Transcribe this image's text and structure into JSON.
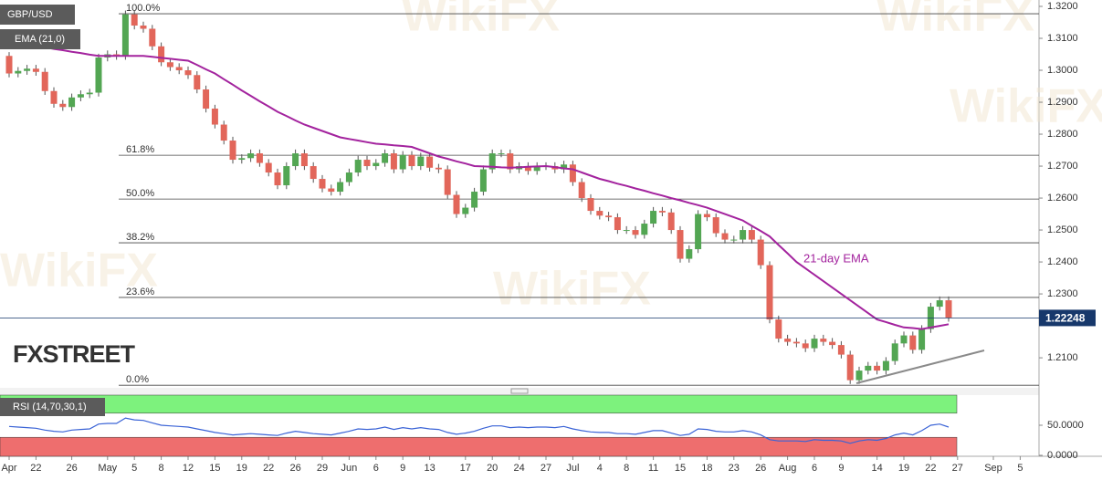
{
  "chart_data": [
    {
      "type": "candlestick",
      "title": "GBP/USD",
      "categories": [
        "Apr",
        null,
        null,
        "22",
        null,
        null,
        null,
        "26",
        null,
        null,
        null,
        "May",
        null,
        null,
        "5",
        null,
        null,
        "8",
        null,
        null,
        "12",
        null,
        null,
        "15",
        null,
        null,
        "19",
        null,
        null,
        "22",
        null,
        null,
        "26",
        null,
        null,
        "29",
        null,
        null,
        "Jun",
        null,
        null,
        "6",
        null,
        null,
        "9",
        null,
        null,
        "13",
        null,
        null,
        null,
        "17",
        null,
        null,
        "20",
        null,
        null,
        "24",
        null,
        null,
        "27",
        null,
        null,
        "Jul",
        null,
        null,
        "4",
        null,
        null,
        "8",
        null,
        null,
        "11",
        null,
        null,
        "15",
        null,
        null,
        "18",
        null,
        null,
        "23",
        null,
        null,
        "26",
        null,
        null,
        "Aug",
        null,
        null,
        "6",
        null,
        null,
        "9",
        null,
        null,
        null,
        "14",
        null,
        null,
        "19",
        null,
        null,
        "22",
        null,
        null,
        "27",
        null,
        null,
        null,
        "Sep",
        null,
        null,
        "5"
      ],
      "open": [
        1.3045,
        1.299,
        1.2998,
        1.3005,
        1.2995,
        1.2935,
        1.2895,
        1.2885,
        1.2915,
        1.2925,
        1.293,
        1.304,
        1.305,
        1.3045,
        1.3175,
        1.314,
        1.313,
        1.3075,
        1.3025,
        1.301,
        1.3,
        1.2985,
        1.294,
        1.288,
        1.283,
        1.278,
        1.272,
        1.2725,
        1.274,
        1.271,
        1.268,
        1.264,
        1.27,
        1.274,
        1.27,
        1.266,
        1.263,
        1.262,
        1.265,
        1.268,
        1.272,
        1.27,
        1.271,
        1.274,
        1.269,
        1.2735,
        1.27,
        1.273,
        1.2695,
        1.269,
        1.261,
        1.255,
        1.257,
        1.262,
        1.269,
        1.274,
        1.274,
        1.269,
        1.27,
        1.2685,
        1.27,
        1.27,
        1.269,
        1.2705,
        1.265,
        1.26,
        1.256,
        1.2545,
        1.254,
        1.25,
        1.25,
        1.2485,
        1.252,
        1.256,
        1.2555,
        1.25,
        1.241,
        1.244,
        1.255,
        1.254,
        1.249,
        1.247,
        1.247,
        1.25,
        1.247,
        1.239,
        1.222,
        1.216,
        1.215,
        1.2145,
        1.213,
        1.216,
        1.215,
        1.214,
        1.211,
        1.203,
        1.206,
        1.2075,
        1.206,
        1.209,
        1.2145,
        1.217,
        1.2125,
        1.219,
        1.226,
        1.228,
        null,
        null,
        null,
        null,
        null,
        null,
        null,
        null
      ],
      "high": [
        1.3057,
        1.301,
        1.3017,
        1.3017,
        1.3007,
        1.2947,
        1.2907,
        1.2927,
        1.2937,
        1.2942,
        1.3052,
        1.3062,
        1.3062,
        1.3187,
        1.3187,
        1.3152,
        1.3142,
        1.3087,
        1.3037,
        1.3022,
        1.3012,
        1.2997,
        1.2952,
        1.2892,
        1.2842,
        1.2792,
        1.2737,
        1.2752,
        1.2752,
        1.2722,
        1.2692,
        1.2712,
        1.2752,
        1.2752,
        1.2712,
        1.2672,
        1.2642,
        1.2662,
        1.2692,
        1.2732,
        1.2732,
        1.2722,
        1.2752,
        1.2752,
        1.2747,
        1.2747,
        1.2742,
        1.2742,
        1.2707,
        1.2702,
        1.2622,
        1.2582,
        1.2632,
        1.2702,
        1.2752,
        1.2752,
        1.2752,
        1.2712,
        1.2712,
        1.2712,
        1.2712,
        1.2712,
        1.2717,
        1.2717,
        1.2662,
        1.2612,
        1.2572,
        1.2557,
        1.2552,
        1.2512,
        1.2512,
        1.2532,
        1.2572,
        1.2572,
        1.2567,
        1.2512,
        1.2452,
        1.2562,
        1.2562,
        1.2552,
        1.2502,
        1.2482,
        1.2512,
        1.2512,
        1.2482,
        1.2402,
        1.2232,
        1.2172,
        1.2162,
        1.2157,
        1.2172,
        1.2172,
        1.2162,
        1.2152,
        1.2122,
        1.2072,
        1.2087,
        1.2087,
        1.2102,
        1.2157,
        1.2182,
        1.2182,
        1.2202,
        1.2272,
        1.2292,
        1.2292,
        null,
        null,
        null,
        null,
        null,
        null,
        null,
        null
      ],
      "low": [
        1.2978,
        1.2978,
        1.2986,
        1.2983,
        1.2923,
        1.2883,
        1.2873,
        1.2873,
        1.2903,
        1.2913,
        1.2918,
        1.3028,
        1.3033,
        1.3033,
        1.3128,
        1.3118,
        1.3063,
        1.3013,
        1.2998,
        1.2988,
        1.2973,
        1.2928,
        1.2868,
        1.2818,
        1.2768,
        1.2708,
        1.2708,
        1.2713,
        1.2698,
        1.2668,
        1.2628,
        1.2628,
        1.2688,
        1.2688,
        1.2648,
        1.2618,
        1.2608,
        1.2608,
        1.2638,
        1.2668,
        1.2688,
        1.2688,
        1.2698,
        1.2678,
        1.2678,
        1.2688,
        1.2688,
        1.2683,
        1.2678,
        1.2598,
        1.2538,
        1.2538,
        1.2558,
        1.2608,
        1.2678,
        1.2728,
        1.2678,
        1.2678,
        1.2673,
        1.2673,
        1.2688,
        1.2678,
        1.2678,
        1.2638,
        1.2588,
        1.2548,
        1.2533,
        1.2528,
        1.2488,
        1.2488,
        1.2473,
        1.2473,
        1.2508,
        1.2543,
        1.2488,
        1.2398,
        1.2398,
        1.2428,
        1.2528,
        1.2478,
        1.2458,
        1.2458,
        1.2458,
        1.2458,
        1.2378,
        1.2208,
        1.2148,
        1.2138,
        1.2133,
        1.2118,
        1.2118,
        1.2138,
        1.2128,
        1.2098,
        1.2018,
        1.2018,
        1.2048,
        1.2048,
        1.2048,
        1.2078,
        1.2133,
        1.2113,
        1.2113,
        1.2178,
        1.2248,
        1.2213,
        null,
        null,
        null,
        null,
        null,
        null,
        null,
        null
      ],
      "close": [
        1.299,
        1.2998,
        1.3005,
        1.2995,
        1.2935,
        1.2895,
        1.2885,
        1.2915,
        1.2925,
        1.293,
        1.304,
        1.305,
        1.3045,
        1.3175,
        1.314,
        1.313,
        1.3075,
        1.3025,
        1.301,
        1.3,
        1.2985,
        1.294,
        1.288,
        1.283,
        1.278,
        1.272,
        1.2725,
        1.274,
        1.271,
        1.268,
        1.264,
        1.27,
        1.274,
        1.27,
        1.266,
        1.263,
        1.262,
        1.265,
        1.268,
        1.272,
        1.27,
        1.271,
        1.274,
        1.269,
        1.2735,
        1.27,
        1.273,
        1.2695,
        1.269,
        1.261,
        1.255,
        1.257,
        1.262,
        1.269,
        1.274,
        1.274,
        1.269,
        1.27,
        1.2685,
        1.27,
        1.27,
        1.269,
        1.2705,
        1.265,
        1.26,
        1.256,
        1.2545,
        1.254,
        1.25,
        1.25,
        1.2485,
        1.252,
        1.256,
        1.2555,
        1.25,
        1.241,
        1.244,
        1.255,
        1.254,
        1.249,
        1.247,
        1.247,
        1.25,
        1.247,
        1.239,
        1.222,
        1.216,
        1.215,
        1.2145,
        1.213,
        1.216,
        1.215,
        1.214,
        1.211,
        1.203,
        1.206,
        1.2075,
        1.206,
        1.209,
        1.2145,
        1.217,
        1.2125,
        1.219,
        1.226,
        1.228,
        1.2225,
        null,
        null,
        null,
        null,
        null,
        null,
        null,
        null
      ],
      "up_color": "#53a653",
      "down_color": "#e2665a",
      "series": [
        {
          "name": "EMA (21,0)",
          "color": "#a3239e",
          "values": [
            1.309,
            1.3085,
            1.3081,
            1.3076,
            1.3072,
            1.3067,
            1.3063,
            1.3058,
            1.3054,
            1.3049,
            1.3045,
            1.3045,
            1.3045,
            1.3045,
            1.3045,
            1.3045,
            1.3042,
            1.3039,
            1.3036,
            1.3033,
            1.303,
            1.3017,
            1.3003,
            1.299,
            1.2972,
            1.2955,
            1.2937,
            1.292,
            1.2903,
            1.2887,
            1.287,
            1.2857,
            1.2843,
            1.283,
            1.282,
            1.281,
            1.28,
            1.279,
            1.2785,
            1.278,
            1.2775,
            1.277,
            1.2768,
            1.2765,
            1.2763,
            1.276,
            1.275,
            1.274,
            1.273,
            1.2723,
            1.2715,
            1.2708,
            1.27,
            1.2699,
            1.2698,
            1.2696,
            1.2695,
            1.2696,
            1.2698,
            1.2699,
            1.27,
            1.2697,
            1.2693,
            1.269,
            1.268,
            1.267,
            1.266,
            1.2653,
            1.2645,
            1.2638,
            1.263,
            1.2623,
            1.2615,
            1.2608,
            1.26,
            1.2593,
            1.2585,
            1.2578,
            1.257,
            1.256,
            1.255,
            1.254,
            1.253,
            1.2513,
            1.2497,
            1.248,
            1.2453,
            1.2427,
            1.24,
            1.238,
            1.236,
            1.234,
            1.232,
            1.23,
            1.228,
            1.226,
            1.224,
            1.222,
            1.2212,
            1.2203,
            1.2195,
            1.2193,
            1.219,
            1.2195,
            1.22,
            1.2205,
            null,
            null,
            null,
            null,
            null,
            null,
            null,
            null
          ]
        }
      ],
      "annotation": "21-day EMA",
      "ylim": [
        1.2006,
        1.322
      ],
      "yticks": [
        {
          "value": 1.32,
          "label": "1.3200"
        },
        {
          "value": 1.31,
          "label": "1.3100"
        },
        {
          "value": 1.3,
          "label": "1.3000"
        },
        {
          "value": 1.29,
          "label": "1.2900"
        },
        {
          "value": 1.28,
          "label": "1.2800"
        },
        {
          "value": 1.27,
          "label": "1.2700"
        },
        {
          "value": 1.26,
          "label": "1.2600"
        },
        {
          "value": 1.25,
          "label": "1.2500"
        },
        {
          "value": 1.24,
          "label": "1.2400"
        },
        {
          "value": 1.23,
          "label": "1.2300"
        },
        {
          "value": 1.21,
          "label": "1.2100"
        }
      ],
      "last_price": 1.22248,
      "last_price_color": "#17386b",
      "fib_levels": [
        {
          "label": "100.0%",
          "price": 1.3177
        },
        {
          "label": "61.8%",
          "price": 1.2734
        },
        {
          "label": "50.0%",
          "price": 1.2597
        },
        {
          "label": "38.2%",
          "price": 1.246
        },
        {
          "label": "23.6%",
          "price": 1.2289
        },
        {
          "label": "0.0%",
          "price": 1.2014
        }
      ],
      "logo": "FXSTREET",
      "watermark": "WikiFX"
    },
    {
      "type": "line",
      "name": "RSI (14,70,30,1)",
      "color": "#3a63d6",
      "values": [
        48,
        47,
        46,
        45,
        42,
        40,
        39,
        42,
        43,
        44,
        52,
        53,
        53,
        62,
        59,
        58,
        54,
        50,
        49,
        48,
        47,
        44,
        41,
        38,
        36,
        34,
        35,
        36,
        35,
        34,
        33,
        37,
        40,
        38,
        36,
        35,
        34,
        37,
        40,
        44,
        43,
        44,
        47,
        43,
        46,
        44,
        46,
        44,
        43,
        38,
        35,
        37,
        40,
        45,
        49,
        49,
        46,
        47,
        46,
        47,
        47,
        46,
        48,
        44,
        41,
        39,
        38,
        38,
        36,
        36,
        35,
        38,
        41,
        41,
        37,
        33,
        35,
        44,
        43,
        40,
        39,
        39,
        41,
        39,
        34,
        26,
        24,
        24,
        24,
        23,
        26,
        25,
        25,
        24,
        20,
        24,
        26,
        25,
        28,
        34,
        37,
        34,
        41,
        50,
        52,
        47,
        null,
        null,
        null,
        null,
        null,
        null,
        null,
        null
      ],
      "ylim": [
        0,
        100
      ],
      "yticks": [
        {
          "value": 50,
          "label": "50.0000"
        },
        {
          "value": 0,
          "label": "0.0000"
        }
      ],
      "overbought": 70,
      "oversold": 30,
      "overbought_color": "#7df27d",
      "oversold_color": "#ee6e6e"
    }
  ]
}
